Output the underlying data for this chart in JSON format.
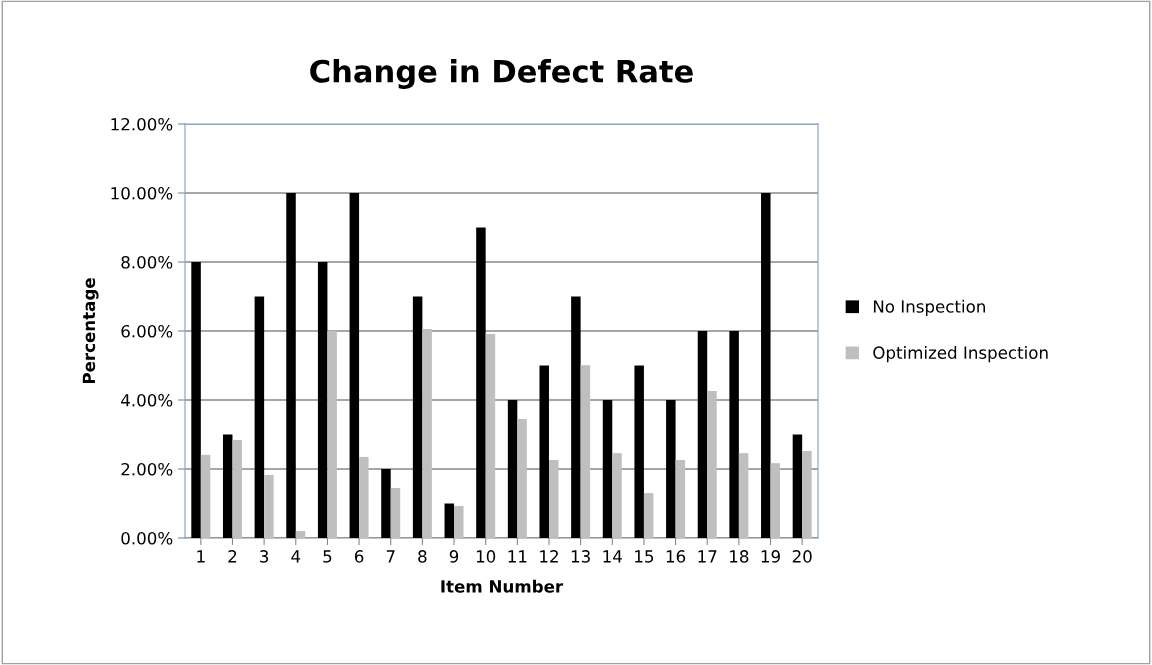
{
  "chart_data": {
    "type": "bar",
    "title": "Change in Defect Rate",
    "xlabel": "Item Number",
    "ylabel": "Percentage",
    "categories": [
      "1",
      "2",
      "3",
      "4",
      "5",
      "6",
      "7",
      "8",
      "9",
      "10",
      "11",
      "12",
      "13",
      "14",
      "15",
      "16",
      "17",
      "18",
      "19",
      "20"
    ],
    "series": [
      {
        "name": "No Inspection",
        "color": "#000000",
        "values": [
          8,
          3,
          7,
          10,
          8,
          10,
          2,
          7,
          1,
          9,
          4,
          5,
          7,
          4,
          5,
          4,
          6,
          6,
          10,
          3
        ]
      },
      {
        "name": "Optimized Inspection",
        "color": "#bfbfbf",
        "values": [
          2.41,
          2.84,
          1.83,
          0.2,
          6.0,
          2.35,
          1.45,
          6.06,
          0.93,
          5.91,
          3.45,
          2.26,
          5.01,
          2.46,
          1.3,
          2.26,
          4.26,
          2.46,
          2.17,
          2.52
        ]
      }
    ],
    "ylim": [
      0,
      12
    ],
    "yticks": [
      {
        "value": 0,
        "label": "0.00%"
      },
      {
        "value": 2,
        "label": "2.00%"
      },
      {
        "value": 4,
        "label": "4.00%"
      },
      {
        "value": 6,
        "label": "6.00%"
      },
      {
        "value": 8,
        "label": "8.00%"
      },
      {
        "value": 10,
        "label": "10.00%"
      },
      {
        "value": 12,
        "label": "12.00%"
      }
    ],
    "grid": "y",
    "legend": "right"
  }
}
